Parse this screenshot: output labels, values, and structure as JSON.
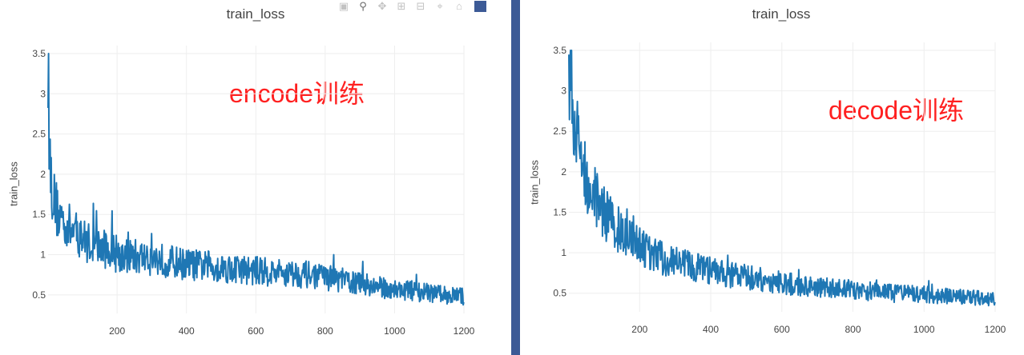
{
  "colors": {
    "line": "#1f77b4",
    "grid": "#eeeeee",
    "text": "#444444",
    "annotation": "#ff2020",
    "divider": "#3c5a96"
  },
  "modebar": {
    "buttons": [
      "camera-icon",
      "zoom-icon",
      "pan-icon",
      "zoom-in-icon",
      "zoom-out-icon",
      "autoscale-icon",
      "home-icon",
      "plotly-logo-icon"
    ]
  },
  "chart_data": [
    {
      "type": "line",
      "title": "train_loss",
      "ylabel": "train_loss",
      "xlabel": "",
      "annotation": "encode训练",
      "xlim": [
        1,
        1200
      ],
      "ylim": [
        0.27,
        3.5
      ],
      "xticks": [
        200,
        400,
        600,
        800,
        1000,
        1200
      ],
      "xtick_labels": [
        "200",
        "400",
        "600",
        "800",
        "1000",
        "1200"
      ],
      "yticks": [
        0.5,
        1,
        1.5,
        2,
        2.5,
        3,
        3.5
      ],
      "ytick_labels": [
        "0.5",
        "1",
        "1.5",
        "2",
        "2.5",
        "3",
        "3.5"
      ],
      "grid": true,
      "series": [
        {
          "x": [
            1,
            5,
            10,
            15,
            20,
            30,
            40,
            50,
            60,
            70,
            80,
            100,
            120,
            140,
            160,
            180,
            200,
            250,
            300,
            350,
            400,
            450,
            500,
            550,
            600,
            650,
            700,
            750,
            800,
            850,
            900,
            950,
            1000,
            1050,
            1100,
            1150,
            1200
          ],
          "y": [
            3.45,
            2.3,
            1.95,
            1.75,
            1.65,
            1.5,
            1.45,
            1.4,
            1.35,
            1.3,
            1.28,
            1.2,
            1.15,
            1.1,
            1.08,
            1.05,
            1.0,
            0.98,
            0.95,
            0.92,
            0.88,
            0.86,
            0.84,
            0.82,
            0.8,
            0.78,
            0.77,
            0.75,
            0.72,
            0.68,
            0.64,
            0.6,
            0.57,
            0.55,
            0.52,
            0.5,
            0.48
          ]
        }
      ]
    },
    {
      "type": "line",
      "title": "train_loss",
      "ylabel": "train_loss",
      "xlabel": "",
      "annotation": "decode训练",
      "xlim": [
        1,
        1200
      ],
      "ylim": [
        0.27,
        3.5
      ],
      "xticks": [
        200,
        400,
        600,
        800,
        1000,
        1200
      ],
      "xtick_labels": [
        "200",
        "400",
        "600",
        "800",
        "1000",
        "1200"
      ],
      "yticks": [
        0.5,
        1,
        1.5,
        2,
        2.5,
        3,
        3.5
      ],
      "ytick_labels": [
        "0.5",
        "1",
        "1.5",
        "2",
        "2.5",
        "3",
        "3.5"
      ],
      "grid": true,
      "series": [
        {
          "x": [
            1,
            5,
            10,
            15,
            20,
            30,
            40,
            50,
            60,
            70,
            80,
            100,
            120,
            140,
            160,
            180,
            200,
            250,
            300,
            350,
            400,
            450,
            500,
            550,
            600,
            650,
            700,
            750,
            800,
            850,
            900,
            950,
            1000,
            1050,
            1100,
            1150,
            1200
          ],
          "y": [
            3.4,
            3.2,
            2.95,
            2.7,
            2.5,
            2.3,
            2.1,
            1.95,
            1.85,
            1.75,
            1.65,
            1.5,
            1.38,
            1.28,
            1.2,
            1.13,
            1.07,
            0.95,
            0.88,
            0.82,
            0.77,
            0.73,
            0.7,
            0.66,
            0.63,
            0.6,
            0.58,
            0.56,
            0.54,
            0.52,
            0.5,
            0.49,
            0.48,
            0.47,
            0.46,
            0.45,
            0.44
          ]
        }
      ]
    }
  ]
}
